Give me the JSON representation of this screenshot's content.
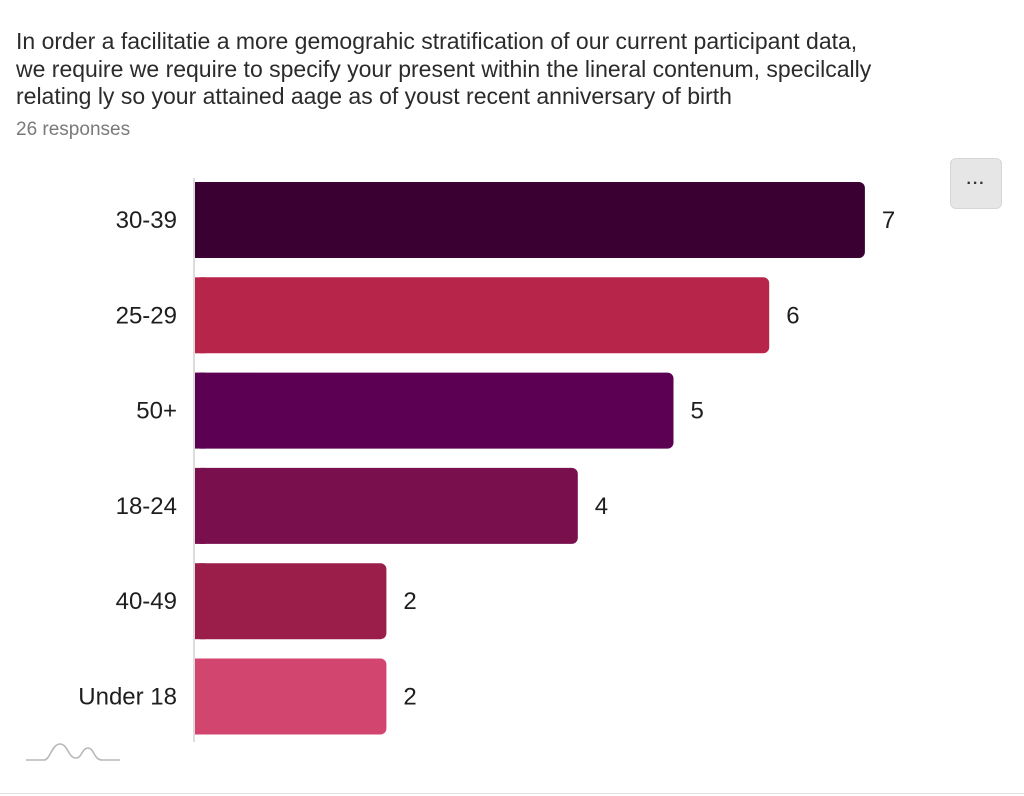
{
  "question": {
    "line1": "In order a facilitatie a more gemograhic stratification of our current participant data,",
    "line2": "we require we require to specify your present  within the lineral contenum, specilcally",
    "line3": "relating  ly so your attained  aage as of youst recent anniversary of birth",
    "responses": "26 responses"
  },
  "menu": {
    "label": "···"
  },
  "colors": {
    "30-39": "#3b0032",
    "25-29": "#b8254a",
    "50+": "#5c0054",
    "18-24": "#7a0f4e",
    "40-49": "#9b1e4a",
    "Under 18": "#d2456e"
  },
  "chart_data": {
    "type": "bar",
    "orientation": "horizontal",
    "categories": [
      "30-39",
      "25-29",
      "50+",
      "18-24",
      "40-49",
      "Under 18"
    ],
    "values": [
      7,
      6,
      5,
      4,
      2,
      2
    ],
    "title": "",
    "xlabel": "",
    "ylabel": "",
    "xlim": [
      0,
      7
    ],
    "grid": false,
    "legend": "none"
  },
  "logo_icon": "wave-logo-icon"
}
